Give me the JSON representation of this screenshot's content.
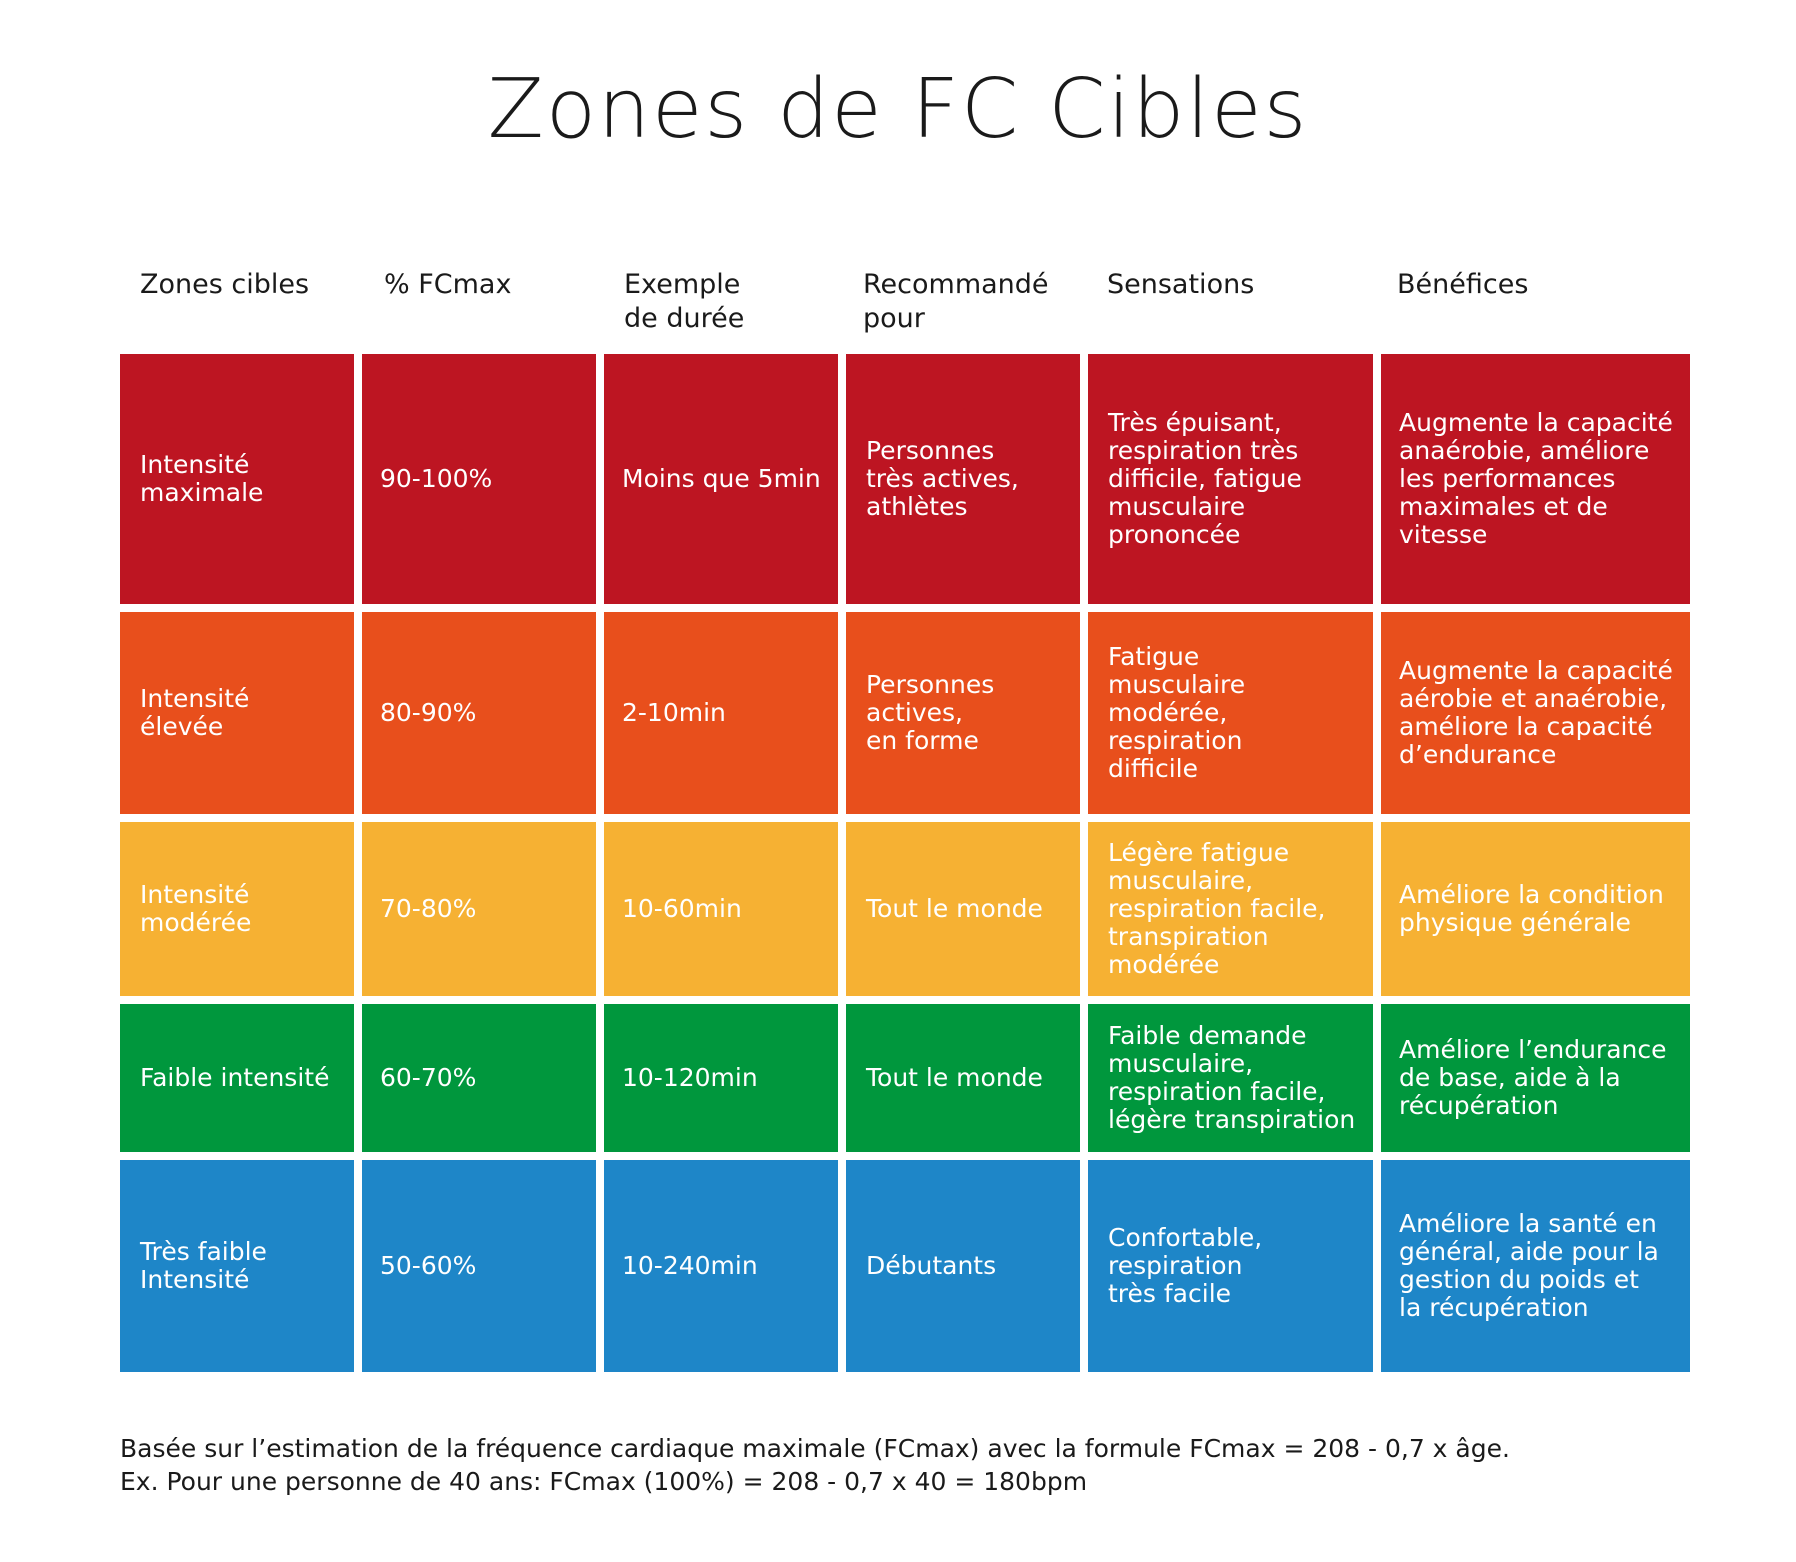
{
  "title": "Zones de FC Cibles",
  "colors": {
    "red": "#BD1522",
    "orange": "#E84F1C",
    "yellow": "#F6B133",
    "green": "#00973D",
    "blue": "#1E86C8"
  },
  "headers": [
    "Zones cibles",
    "% FCmax",
    "Exemple\nde durée",
    "Recommandé\npour",
    "Sensations",
    "Bénéfices"
  ],
  "rows": [
    {
      "color": "#BD1522",
      "cells": [
        "Intensité\nmaximale",
        "90-100%",
        "Moins que 5min",
        "Personnes\ntrès actives,\nathlètes",
        "Très épuisant,\nrespiration très\ndifficile, fatigue\nmusculaire\nprononcée",
        "Augmente la capacité\nanaérobie, améliore\nles performances\nmaximales et de\nvitesse"
      ]
    },
    {
      "color": "#E84F1C",
      "cells": [
        "Intensité\nélevée",
        "80-90%",
        "2-10min",
        "Personnes\nactives,\nen forme",
        "Fatigue\nmusculaire\nmodérée,\nrespiration\ndifficile",
        "Augmente la capacité\naérobie et anaérobie,\naméliore la capacité\nd’endurance"
      ]
    },
    {
      "color": "#F6B133",
      "cells": [
        "Intensité\nmodérée",
        "70-80%",
        "10-60min",
        "Tout le monde",
        "Légère fatigue\nmusculaire,\nrespiration facile,\ntranspiration\nmodérée",
        "Améliore la condition\nphysique générale"
      ]
    },
    {
      "color": "#00973D",
      "cells": [
        "Faible intensité",
        "60-70%",
        "10-120min",
        "Tout le monde",
        "Faible demande\nmusculaire,\nrespiration facile,\nlégère transpiration",
        "Améliore l’endurance\nde base, aide à la\nrécupération"
      ]
    },
    {
      "color": "#1E86C8",
      "cells": [
        "Très faible\nIntensité",
        "50-60%",
        "10-240min",
        "Débutants",
        "Confortable,\nrespiration\ntrès facile",
        "Améliore la santé en\ngénéral, aide pour la\ngestion du poids et\nla récupération"
      ]
    }
  ],
  "footer": {
    "line1": "Basée sur l’estimation de la fréquence cardiaque maximale (FCmax) avec la formule FCmax =  208 - 0,7 x âge.",
    "line2": "Ex. Pour une personne de 40 ans: FCmax (100%) = 208 - 0,7 x 40 = 180bpm"
  }
}
